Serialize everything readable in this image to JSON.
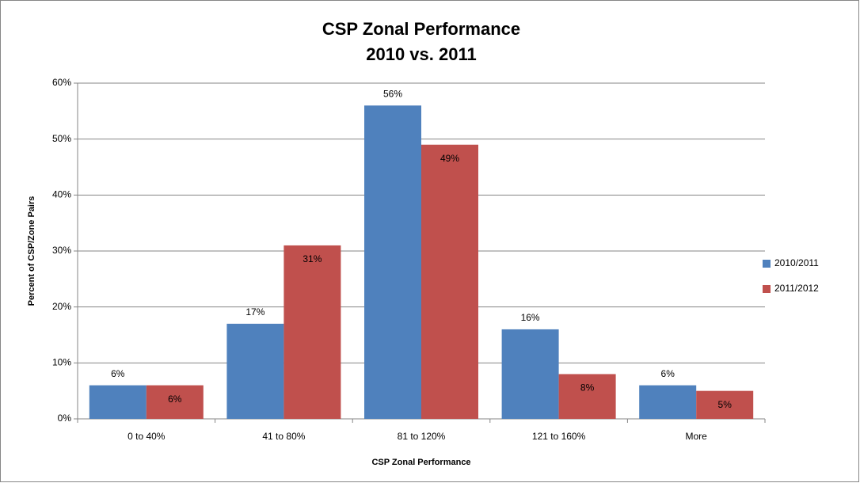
{
  "chart_data": {
    "type": "bar",
    "title": "CSP Zonal Performance",
    "subtitle": "2010 vs. 2011",
    "x_label": "CSP Zonal Performance",
    "y_label": "Percent of CSP/Zone Pairs",
    "categories": [
      "0 to 40%",
      "41 to 80%",
      "81 to 120%",
      "121 to 160%",
      "More"
    ],
    "series": [
      {
        "name": "2010/2011",
        "color": "#4f81bd",
        "values": [
          6,
          17,
          56,
          16,
          6
        ],
        "value_labels": [
          "6%",
          "17%",
          "56%",
          "16%",
          "6%"
        ]
      },
      {
        "name": "2011/2012",
        "color": "#c0504d",
        "values": [
          6,
          31,
          49,
          8,
          5
        ],
        "value_labels": [
          "6%",
          "31%",
          "49%",
          "8%",
          "5%"
        ]
      }
    ],
    "ylim": [
      0,
      60
    ],
    "yticks": [
      {
        "value": 0,
        "label": "0%"
      },
      {
        "value": 10,
        "label": "10%"
      },
      {
        "value": 20,
        "label": "20%"
      },
      {
        "value": 30,
        "label": "30%"
      },
      {
        "value": 40,
        "label": "40%"
      },
      {
        "value": 50,
        "label": "50%"
      },
      {
        "value": 60,
        "label": "60%"
      }
    ],
    "grid": true,
    "legend": "right"
  }
}
